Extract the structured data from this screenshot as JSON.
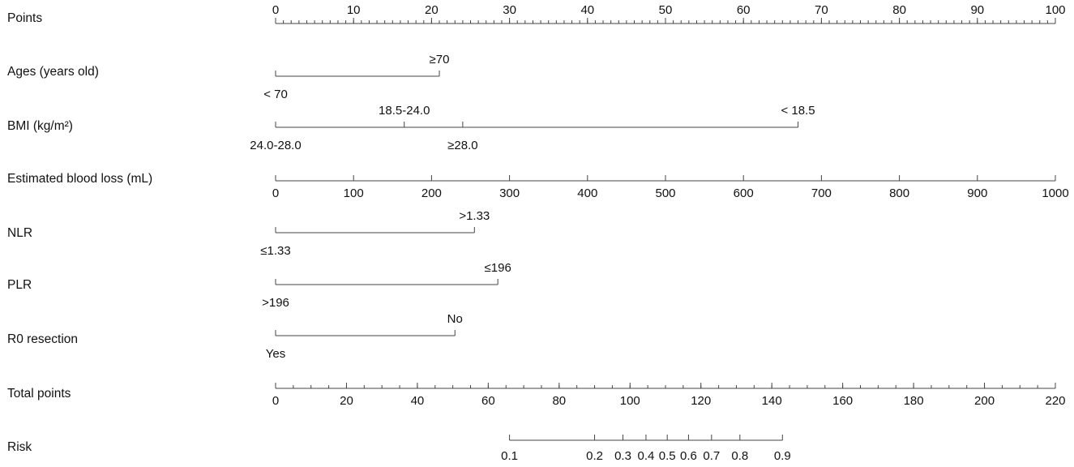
{
  "chart_data": {
    "type": "nomogram",
    "rows": [
      {
        "key": "points",
        "label": "Points",
        "kind": "axis",
        "ticks": [
          "0",
          "10",
          "20",
          "30",
          "40",
          "50",
          "60",
          "70",
          "80",
          "90",
          "100"
        ],
        "range": [
          0,
          100
        ],
        "minor_step": 1
      },
      {
        "key": "age",
        "label": "Ages (years old)",
        "kind": "categorical",
        "levels": [
          {
            "label": "< 70",
            "points": 0,
            "side": "below"
          },
          {
            "label": "≥70",
            "points": 21,
            "side": "above"
          }
        ]
      },
      {
        "key": "bmi",
        "label": "BMI (kg/m²)",
        "kind": "categorical",
        "levels": [
          {
            "label": "24.0-28.0",
            "points": 0,
            "side": "below"
          },
          {
            "label": "18.5-24.0",
            "points": 16.5,
            "side": "above"
          },
          {
            "label": "≥28.0",
            "points": 24,
            "side": "below"
          },
          {
            "label": "< 18.5",
            "points": 67,
            "side": "above"
          }
        ]
      },
      {
        "key": "ebl",
        "label": "Estimated blood loss (mL)",
        "kind": "axis",
        "ticks": [
          "0",
          "100",
          "200",
          "300",
          "400",
          "500",
          "600",
          "700",
          "800",
          "900",
          "1000"
        ],
        "range": [
          0,
          1000
        ]
      },
      {
        "key": "nlr",
        "label": "NLR",
        "kind": "categorical",
        "levels": [
          {
            "label": "≤1.33",
            "points": 0,
            "side": "below"
          },
          {
            "label": ">1.33",
            "points": 25.5,
            "side": "above"
          }
        ]
      },
      {
        "key": "plr",
        "label": "PLR",
        "kind": "categorical",
        "levels": [
          {
            "label": ">196",
            "points": 0,
            "side": "below"
          },
          {
            "label": "≤196",
            "points": 28.5,
            "side": "above"
          }
        ]
      },
      {
        "key": "r0",
        "label": "R0 resection",
        "kind": "categorical",
        "levels": [
          {
            "label": "Yes",
            "points": 0,
            "side": "below"
          },
          {
            "label": "No",
            "points": 23,
            "side": "above"
          }
        ]
      },
      {
        "key": "total",
        "label": "Total points",
        "kind": "axis",
        "ticks": [
          "0",
          "20",
          "40",
          "60",
          "80",
          "100",
          "120",
          "140",
          "160",
          "180",
          "200",
          "220"
        ],
        "range": [
          0,
          220
        ],
        "minor_step": 5
      },
      {
        "key": "risk",
        "label": "Risk",
        "kind": "risk",
        "values": [
          0.1,
          0.2,
          0.3,
          0.4,
          0.5,
          0.6,
          0.7,
          0.8,
          0.9
        ],
        "tick_labels": [
          "0.1",
          "0.2",
          "0.3",
          "0.4",
          "0.5",
          "0.6",
          "0.7",
          "0.8",
          "0.9"
        ],
        "total_points_at": [
          66,
          90,
          98,
          104.5,
          110.5,
          116.5,
          123,
          131,
          143
        ]
      }
    ]
  }
}
